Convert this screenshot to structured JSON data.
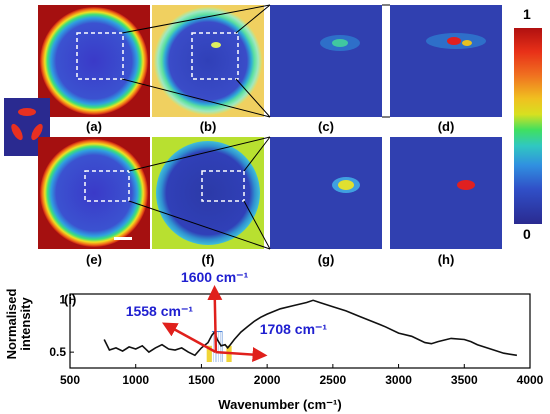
{
  "figure": {
    "panels": [
      {
        "id": "a",
        "label": "(a)"
      },
      {
        "id": "b",
        "label": "(b)"
      },
      {
        "id": "c",
        "label": "(c)"
      },
      {
        "id": "d",
        "label": "(d)"
      },
      {
        "id": "e",
        "label": "(e)"
      },
      {
        "id": "f",
        "label": "(f)"
      },
      {
        "id": "g",
        "label": "(g)"
      },
      {
        "id": "h",
        "label": "(h)"
      }
    ],
    "colorbar": {
      "max_label": "1",
      "min_label": "0"
    },
    "colors": {
      "annotation_blue": "#1f1fd0",
      "arrow_red": "#e0201c",
      "spectrum": "#111111"
    }
  },
  "chart_data": {
    "type": "line",
    "panel_label": "(i)",
    "xlabel": "Wavenumber (cm⁻¹)",
    "ylabel_line1": "Normalised",
    "ylabel_line2": "intensity",
    "xlim": [
      500,
      4000
    ],
    "ylim": [
      0.35,
      1.05
    ],
    "xticks": [
      500,
      1000,
      1500,
      2000,
      2500,
      3000,
      3500,
      4000
    ],
    "yticks": [
      0.5,
      1
    ],
    "ytick_labels": [
      "0.5",
      "1"
    ],
    "annotations": [
      {
        "text": "1558 cm⁻¹",
        "x": 1558
      },
      {
        "text": "1600 cm⁻¹",
        "x": 1600
      },
      {
        "text": "1708 cm⁻¹",
        "x": 1708
      }
    ],
    "series": [
      {
        "x": [
          760,
          800,
          850,
          900,
          950,
          1000,
          1050,
          1100,
          1150,
          1200,
          1250,
          1300,
          1350,
          1400,
          1450,
          1500,
          1550,
          1580,
          1600,
          1620,
          1650,
          1680,
          1700,
          1720,
          1750,
          1800,
          1850,
          1900,
          1950,
          2000,
          2100,
          2200,
          2300,
          2350,
          2400,
          2450,
          2500,
          2600,
          2700,
          2800,
          2900,
          3000,
          3100,
          3200,
          3250,
          3300,
          3400,
          3500,
          3550,
          3600,
          3700,
          3800,
          3900
        ],
        "y": [
          0.62,
          0.52,
          0.54,
          0.51,
          0.55,
          0.53,
          0.56,
          0.5,
          0.54,
          0.57,
          0.53,
          0.52,
          0.54,
          0.5,
          0.47,
          0.54,
          0.59,
          0.66,
          0.69,
          0.62,
          0.56,
          0.57,
          0.54,
          0.57,
          0.62,
          0.69,
          0.74,
          0.79,
          0.83,
          0.86,
          0.91,
          0.94,
          0.97,
          0.99,
          0.97,
          0.95,
          0.93,
          0.89,
          0.84,
          0.79,
          0.74,
          0.68,
          0.65,
          0.59,
          0.58,
          0.6,
          0.63,
          0.62,
          0.6,
          0.57,
          0.53,
          0.49,
          0.47
        ]
      }
    ]
  }
}
